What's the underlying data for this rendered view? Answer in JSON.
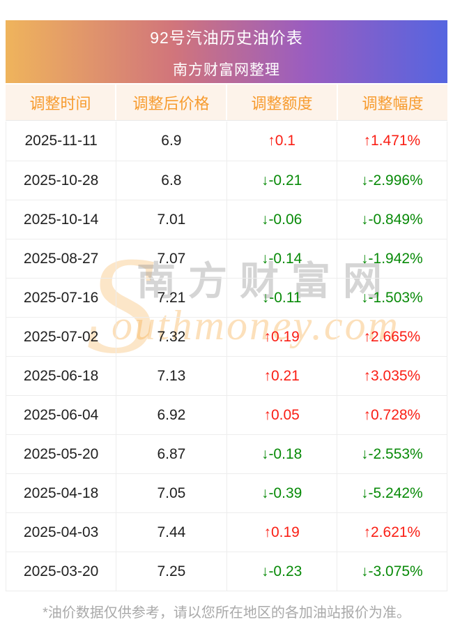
{
  "banner": {
    "title": "92号汽油历史油价表",
    "subtitle": "南方财富网整理"
  },
  "table": {
    "columns": [
      "调整时间",
      "调整后价格",
      "调整额度",
      "调整幅度"
    ],
    "up_arrow": "↑",
    "down_arrow": "↓",
    "rows": [
      {
        "date": "2025-11-11",
        "price": "6.9",
        "amount": "0.1",
        "rate": "1.471%",
        "direction": "up"
      },
      {
        "date": "2025-10-28",
        "price": "6.8",
        "amount": "-0.21",
        "rate": "-2.996%",
        "direction": "down"
      },
      {
        "date": "2025-10-14",
        "price": "7.01",
        "amount": "-0.06",
        "rate": "-0.849%",
        "direction": "down"
      },
      {
        "date": "2025-08-27",
        "price": "7.07",
        "amount": "-0.14",
        "rate": "-1.942%",
        "direction": "down"
      },
      {
        "date": "2025-07-16",
        "price": "7.21",
        "amount": "-0.11",
        "rate": "-1.503%",
        "direction": "down"
      },
      {
        "date": "2025-07-02",
        "price": "7.32",
        "amount": "0.19",
        "rate": "2.665%",
        "direction": "up"
      },
      {
        "date": "2025-06-18",
        "price": "7.13",
        "amount": "0.21",
        "rate": "3.035%",
        "direction": "up"
      },
      {
        "date": "2025-06-04",
        "price": "6.92",
        "amount": "0.05",
        "rate": "0.728%",
        "direction": "up"
      },
      {
        "date": "2025-05-20",
        "price": "6.87",
        "amount": "-0.18",
        "rate": "-2.553%",
        "direction": "down"
      },
      {
        "date": "2025-04-18",
        "price": "7.05",
        "amount": "-0.39",
        "rate": "-5.242%",
        "direction": "down"
      },
      {
        "date": "2025-04-03",
        "price": "7.44",
        "amount": "0.19",
        "rate": "2.621%",
        "direction": "up"
      },
      {
        "date": "2025-03-20",
        "price": "7.25",
        "amount": "-0.23",
        "rate": "-3.075%",
        "direction": "down"
      }
    ]
  },
  "watermark": {
    "initial": "S",
    "cn_text": "南方财富网",
    "en_text": "outhmoney.com"
  },
  "footer": {
    "note": "*油价数据仅供参考，请以您所在地区的各加油站报价为准。"
  },
  "colors": {
    "up": "#fa1e14",
    "down": "#088a08",
    "header_text": "#f79b2e",
    "header_bg": "#fdf3ea",
    "banner_gradient_start": "#efb45c",
    "banner_gradient_mid": "#9a5dc0",
    "banner_gradient_end": "#5565e0"
  }
}
